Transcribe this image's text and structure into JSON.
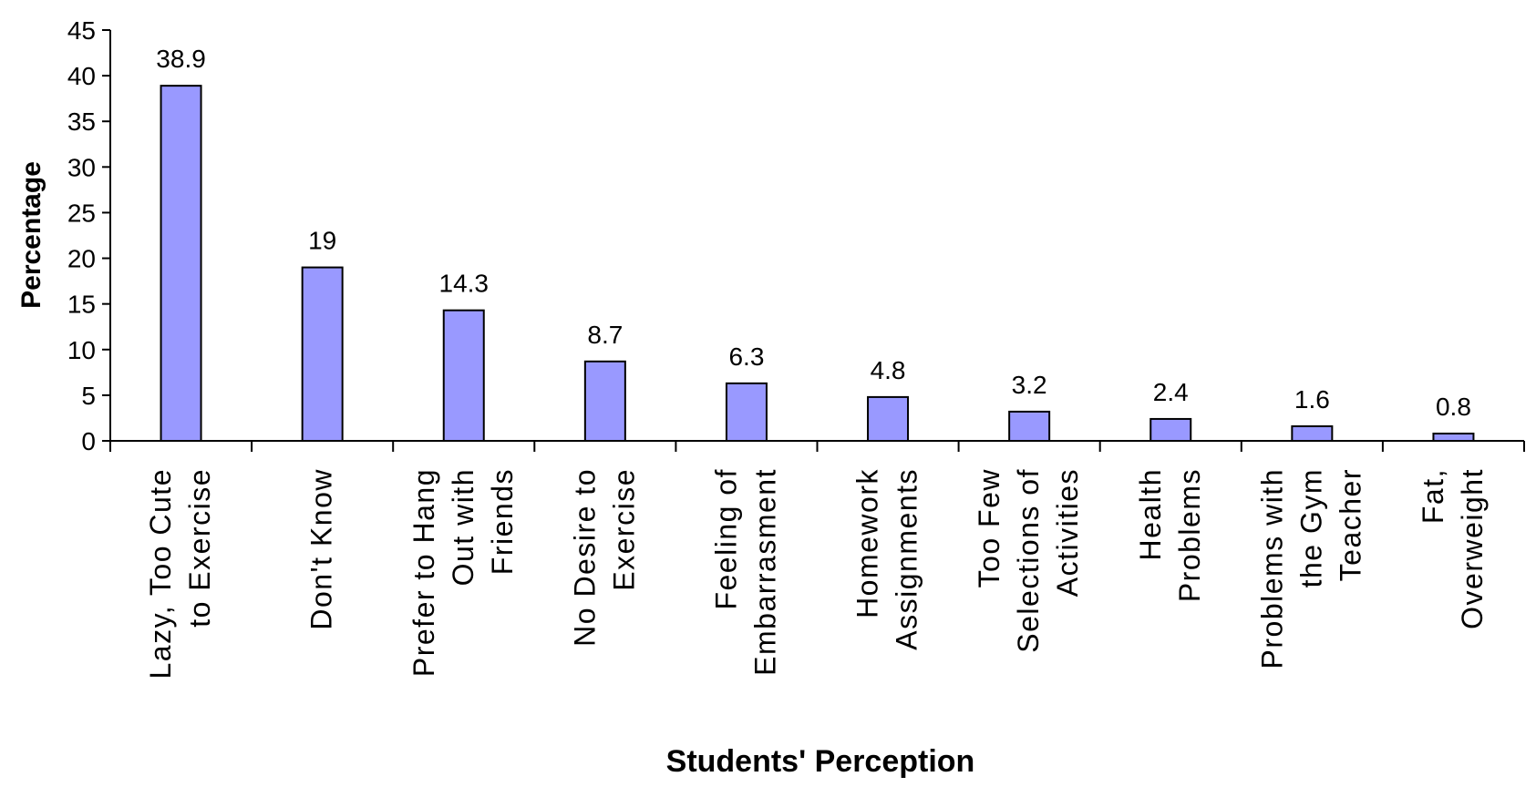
{
  "chart_data": {
    "type": "bar",
    "title": "",
    "xlabel": "Students' Perception",
    "ylabel": "Percentage",
    "ylim": [
      0,
      45
    ],
    "yticks": [
      0,
      5,
      10,
      15,
      20,
      25,
      30,
      35,
      40,
      45
    ],
    "grid": false,
    "legend": "none",
    "bar_color": "#9999FF",
    "bar_edge_color": "#000000",
    "categories": [
      [
        "Lazy, Too Cute",
        "to Exercise"
      ],
      [
        "Don't Know"
      ],
      [
        "Prefer to Hang",
        "Out with",
        "Friends"
      ],
      [
        "No Desire to",
        "Exercise"
      ],
      [
        "Feeling of",
        "Embarrasment"
      ],
      [
        "Homework",
        "Assignments"
      ],
      [
        "Too Few",
        "Selections of",
        "Activities"
      ],
      [
        "Health",
        "Problems"
      ],
      [
        "Problems with",
        "the Gym",
        "Teacher"
      ],
      [
        "Fat,",
        "Overweight"
      ]
    ],
    "values": [
      38.9,
      19,
      14.3,
      8.7,
      6.3,
      4.8,
      3.2,
      2.4,
      1.6,
      0.8
    ],
    "data_labels": [
      "38.9",
      "19",
      "14.3",
      "8.7",
      "6.3",
      "4.8",
      "3.2",
      "2.4",
      "1.6",
      "0.8"
    ]
  }
}
